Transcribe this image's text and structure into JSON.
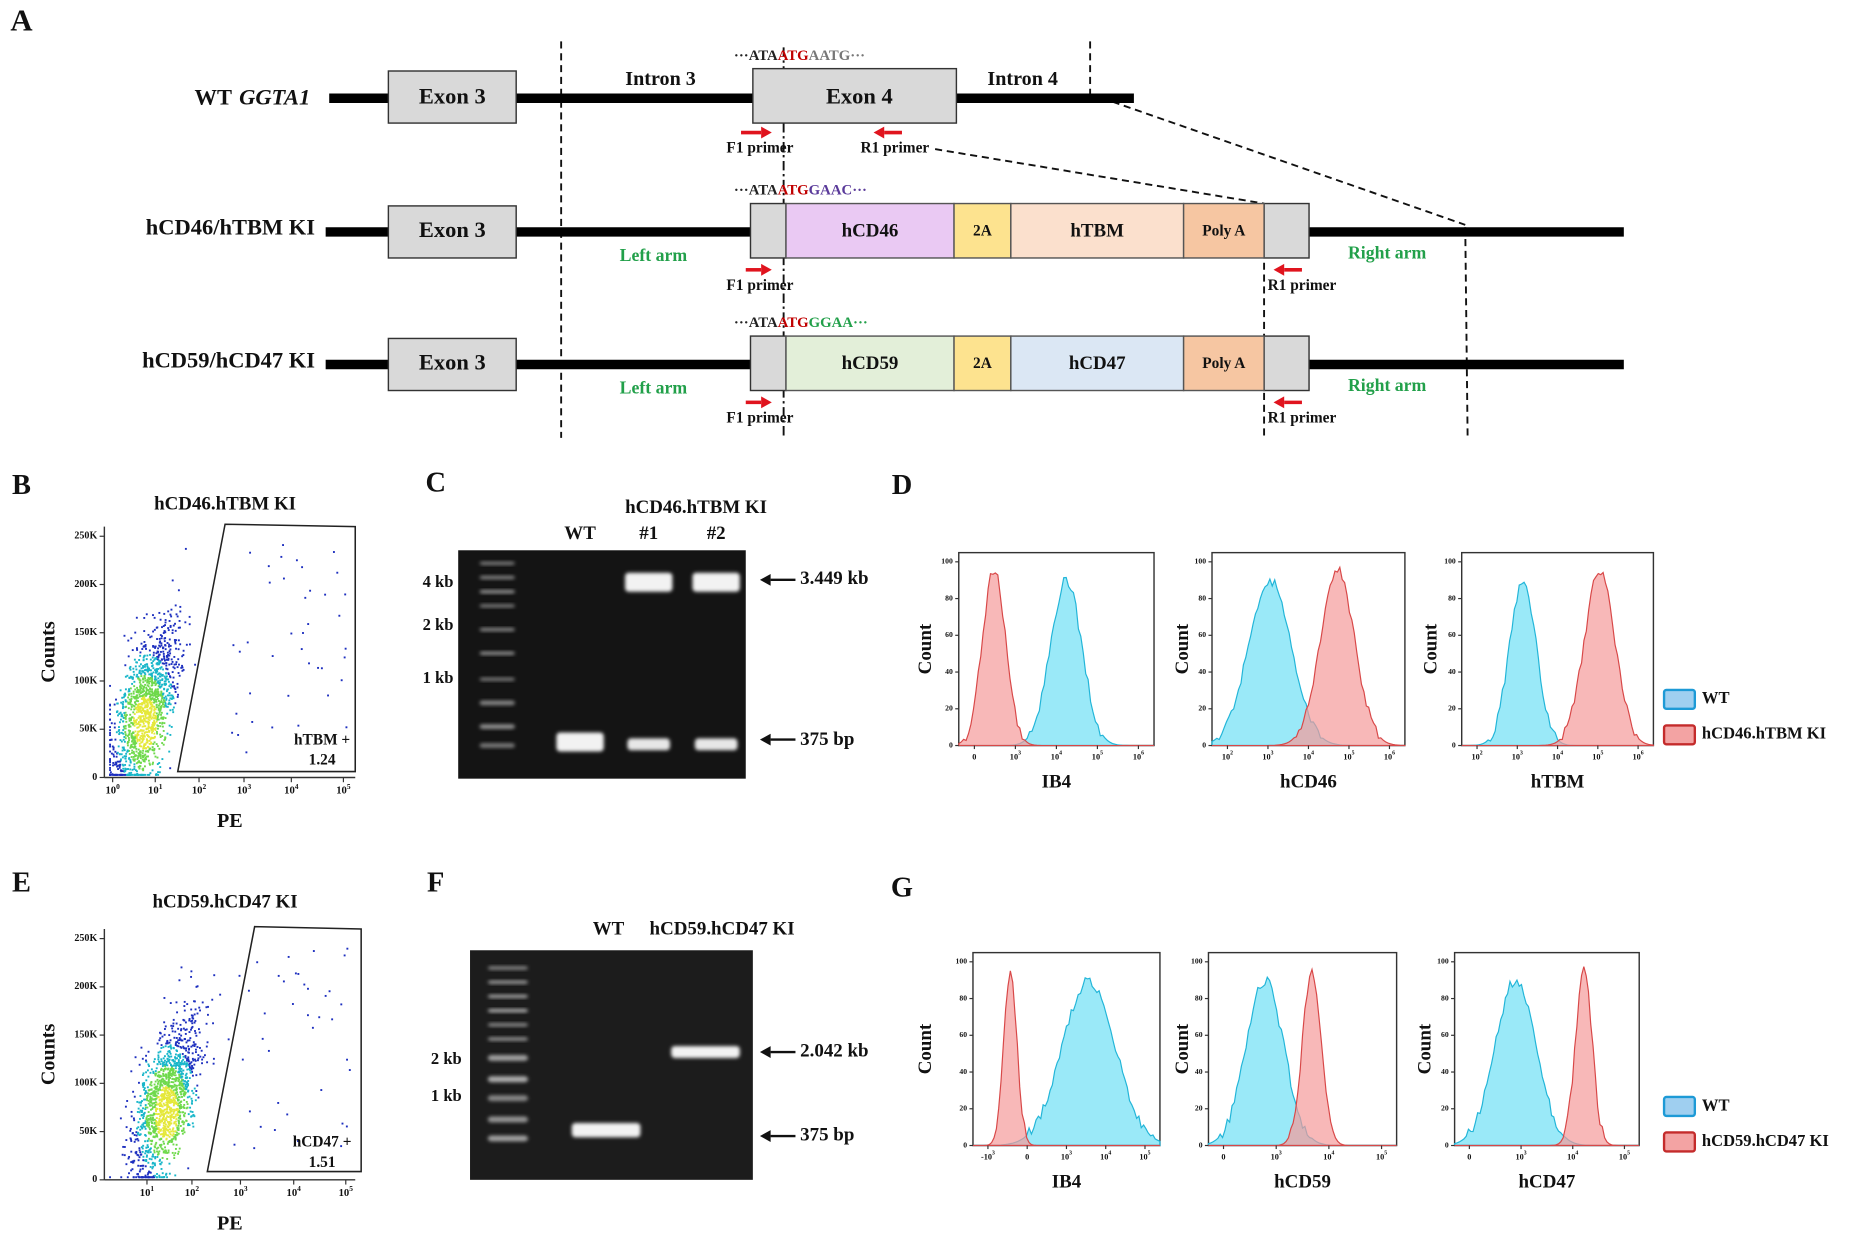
{
  "panel_a": {
    "label": "A",
    "wt": {
      "name": "WT",
      "gene": "GGTA1",
      "exon3": "Exon 3",
      "intron3": "Intron 3",
      "exon4": "Exon 4",
      "intron4": "Intron 4",
      "seq": [
        "···ATA",
        "ATG",
        "AATG···"
      ],
      "f1": "F1 primer",
      "r1": "R1 primer"
    },
    "ki1": {
      "name": "hCD46/hTBM KI",
      "exon3": "Exon 3",
      "genes": [
        "hCD46",
        "2A",
        "hTBM",
        "Poly A"
      ],
      "left": "Left arm",
      "right": "Right arm",
      "seq": [
        "···ATA",
        "ATG",
        "GAAC···"
      ],
      "f1": "F1 primer",
      "r1": "R1 primer"
    },
    "ki2": {
      "name": "hCD59/hCD47 KI",
      "exon3": "Exon 3",
      "genes": [
        "hCD59",
        "2A",
        "hCD47",
        "Poly A"
      ],
      "left": "Left arm",
      "right": "Right arm",
      "seq": [
        "···ATA",
        "ATG",
        "GGAA···"
      ],
      "f1": "F1 primer",
      "r1": "R1 primer"
    }
  },
  "panel_b": {
    "label": "B",
    "title": "hCD46.hTBM KI",
    "ylabel": "Counts",
    "xlabel": "PE",
    "ylim": [
      0,
      260000
    ],
    "yticks": [
      0,
      {
        "value": 50000,
        "label": "50K"
      },
      {
        "value": 100000,
        "label": "100K"
      },
      {
        "value": 150000,
        "label": "150K"
      },
      {
        "value": 200000,
        "label": "200K"
      },
      {
        "value": 250000,
        "label": "250K"
      }
    ],
    "xticks": [
      {
        "base": "10",
        "exp": "0"
      },
      {
        "base": "10",
        "exp": "1"
      },
      {
        "base": "10",
        "exp": "2"
      },
      {
        "base": "10",
        "exp": "3"
      },
      {
        "base": "10",
        "exp": "4"
      },
      {
        "base": "10",
        "exp": "5"
      }
    ],
    "gate": "hTBM +",
    "percent": 1.24
  },
  "panel_c": {
    "label": "C",
    "title": "hCD46.hTBM KI",
    "lanes": [
      "WT",
      "#1",
      "#2"
    ],
    "ladder": [
      "4 kb",
      "2 kb",
      "1 kb"
    ],
    "bands": [
      "3.449 kb",
      "375 bp"
    ]
  },
  "panel_d": {
    "label": "D",
    "ylabel": "Count",
    "ylim": [
      0,
      105
    ],
    "yticks": [
      0,
      20,
      40,
      60,
      80,
      100
    ],
    "plots": [
      {
        "xlabel": "IB4",
        "xticks": [
          0,
          {
            "base": "10",
            "exp": "3"
          },
          {
            "base": "10",
            "exp": "4"
          },
          {
            "base": "10",
            "exp": "5"
          },
          {
            "base": "10",
            "exp": "6"
          }
        ]
      },
      {
        "xlabel": "hCD46",
        "xticks": [
          {
            "base": "10",
            "exp": "2"
          },
          {
            "base": "10",
            "exp": "3"
          },
          {
            "base": "10",
            "exp": "4"
          },
          {
            "base": "10",
            "exp": "5"
          },
          {
            "base": "10",
            "exp": "6"
          }
        ]
      },
      {
        "xlabel": "hTBM",
        "xticks": [
          {
            "base": "10",
            "exp": "2"
          },
          {
            "base": "10",
            "exp": "3"
          },
          {
            "base": "10",
            "exp": "4"
          },
          {
            "base": "10",
            "exp": "5"
          },
          {
            "base": "10",
            "exp": "6"
          }
        ]
      }
    ],
    "legend": [
      "WT",
      "hCD46.hTBM KI"
    ]
  },
  "panel_e": {
    "label": "E",
    "title": "hCD59.hCD47 KI",
    "ylabel": "Counts",
    "xlabel": "PE",
    "ylim": [
      0,
      260000
    ],
    "yticks": [
      0,
      {
        "value": 50000,
        "label": "50K"
      },
      {
        "value": 100000,
        "label": "100K"
      },
      {
        "value": 150000,
        "label": "150K"
      },
      {
        "value": 200000,
        "label": "200K"
      },
      {
        "value": 250000,
        "label": "250K"
      }
    ],
    "xticks": [
      {
        "base": "10",
        "exp": "1"
      },
      {
        "base": "10",
        "exp": "2"
      },
      {
        "base": "10",
        "exp": "3"
      },
      {
        "base": "10",
        "exp": "4"
      },
      {
        "base": "10",
        "exp": "5"
      }
    ],
    "gate": "hCD47 +",
    "percent": 1.51
  },
  "panel_f": {
    "label": "F",
    "lanes": [
      "WT",
      "hCD59.hCD47 KI"
    ],
    "ladder": [
      "2 kb",
      "1 kb"
    ],
    "bands": [
      "2.042 kb",
      "375 bp"
    ]
  },
  "panel_g": {
    "label": "G",
    "ylabel": "Count",
    "ylim": [
      0,
      105
    ],
    "yticks": [
      0,
      20,
      40,
      60,
      80,
      100
    ],
    "plots": [
      {
        "xlabel": "IB4",
        "xticks": [
          {
            "base": "-10",
            "exp": "3"
          },
          0,
          {
            "base": "10",
            "exp": "3"
          },
          {
            "base": "10",
            "exp": "4"
          },
          {
            "base": "10",
            "exp": "5"
          }
        ]
      },
      {
        "xlabel": "hCD59",
        "xticks": [
          0,
          {
            "base": "10",
            "exp": "3"
          },
          {
            "base": "10",
            "exp": "4"
          },
          {
            "base": "10",
            "exp": "5"
          }
        ]
      },
      {
        "xlabel": "hCD47",
        "xticks": [
          0,
          {
            "base": "10",
            "exp": "3"
          },
          {
            "base": "10",
            "exp": "4"
          },
          {
            "base": "10",
            "exp": "5"
          }
        ]
      }
    ],
    "legend": [
      "WT",
      "hCD59.hCD47 KI"
    ]
  }
}
